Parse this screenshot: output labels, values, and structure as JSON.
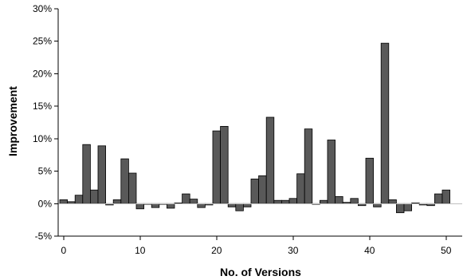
{
  "chart_data": {
    "type": "bar",
    "xlabel": "No. of Versions",
    "ylabel": "Improvement",
    "xlim": [
      0,
      55
    ],
    "ylim": [
      -5,
      30
    ],
    "grid": false,
    "legend": "none",
    "bar_color": "#595959",
    "x_ticks": [
      {
        "value": 0,
        "label": "0"
      },
      {
        "value": 10,
        "label": "10"
      },
      {
        "value": 20,
        "label": "20"
      },
      {
        "value": 30,
        "label": "30"
      },
      {
        "value": 40,
        "label": "40"
      },
      {
        "value": 50,
        "label": "50"
      }
    ],
    "y_ticks": [
      {
        "value": 30,
        "label": "30%"
      },
      {
        "value": 25,
        "label": "25%"
      },
      {
        "value": 20,
        "label": "20%"
      },
      {
        "value": 15,
        "label": "15%"
      },
      {
        "value": 10,
        "label": "10%"
      },
      {
        "value": 5,
        "label": "5%"
      },
      {
        "value": 0,
        "label": "0%"
      },
      {
        "value": -5,
        "label": "-5%"
      }
    ],
    "x": [
      0,
      1,
      2,
      3,
      4,
      5,
      6,
      7,
      8,
      9,
      10,
      11,
      12,
      13,
      14,
      15,
      16,
      17,
      18,
      19,
      20,
      21,
      22,
      23,
      24,
      25,
      26,
      27,
      28,
      29,
      30,
      31,
      32,
      33,
      34,
      35,
      36,
      37,
      38,
      39,
      40,
      41,
      42,
      43,
      44,
      45,
      46,
      47,
      48,
      49,
      50
    ],
    "values": [
      0.6,
      0.3,
      1.3,
      9.1,
      2.1,
      8.9,
      -0.2,
      0.6,
      6.9,
      4.7,
      -0.8,
      -0.1,
      -0.6,
      -0.1,
      -0.7,
      0.1,
      1.5,
      0.7,
      -0.6,
      -0.2,
      11.2,
      11.9,
      -0.5,
      -1.1,
      -0.5,
      3.8,
      4.3,
      13.3,
      0.5,
      0.5,
      0.8,
      4.6,
      11.5,
      -0.1,
      0.5,
      9.8,
      1.1,
      0.2,
      0.8,
      -0.3,
      7.0,
      -0.5,
      24.7,
      0.6,
      -1.4,
      -1.1,
      0.1,
      -0.2,
      -0.3,
      1.5,
      2.1
    ]
  }
}
